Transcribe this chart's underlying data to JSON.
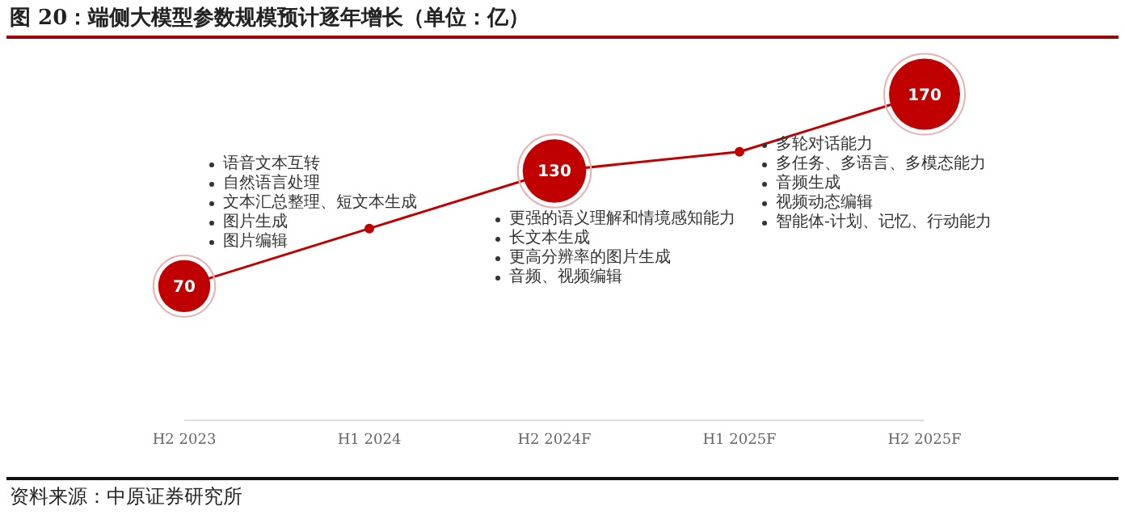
{
  "chart_data": {
    "type": "line",
    "title": "图 20：端侧大模型参数规模预计逐年增长（单位：亿）",
    "categories": [
      "H2 2023",
      "H1 2024",
      "H2 2024F",
      "H1 2025F",
      "H2 2025F"
    ],
    "series": [
      {
        "color": "#c00000",
        "values": [
          70,
          100,
          130,
          140,
          170
        ],
        "value_labels": [
          "70",
          null,
          "130",
          null,
          "170"
        ]
      }
    ],
    "marker": "circle",
    "annotations": [
      "语音文本互转",
      "自然语言处理",
      "文本汇总整理、短文本生成",
      "图片生成",
      "图片编辑",
      "更强的语义理解和情境感知能力",
      "长文本生成",
      "更高分辨率的图片生成",
      "音频、视频编辑",
      "多轮对话能力",
      "多任务、多语言、多模态能力",
      "音频生成",
      "视频动态编辑",
      "智能体-计划、记忆、行动能力",
      "资料来源：中原证券研究所"
    ]
  }
}
